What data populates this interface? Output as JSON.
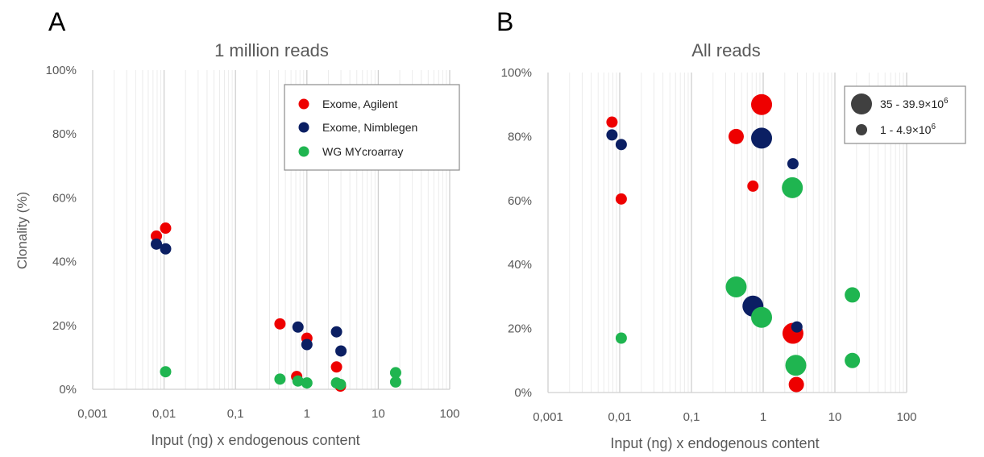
{
  "chart_data": [
    {
      "panel": "A",
      "type": "scatter",
      "title": "1 million reads",
      "xlabel": "Input (ng) x endogenous  content",
      "ylabel": "Clonality (%)",
      "xscale": "log",
      "xlim": [
        0.001,
        100
      ],
      "ylim": [
        0,
        100
      ],
      "x_ticks": [
        "0,001",
        "0,01",
        "0,1",
        "1",
        "10",
        "100"
      ],
      "y_ticks": [
        "0%",
        "20%",
        "40%",
        "60%",
        "80%",
        "100%"
      ],
      "grid": "vertical log gridlines",
      "legend": "top-right",
      "series": [
        {
          "name": "Exome, Agilent",
          "color": "#ee0000",
          "points": [
            {
              "x": 0.0078,
              "y": 48
            },
            {
              "x": 0.0105,
              "y": 50.5
            },
            {
              "x": 0.42,
              "y": 20.5
            },
            {
              "x": 0.72,
              "y": 4
            },
            {
              "x": 1.0,
              "y": 16
            },
            {
              "x": 2.6,
              "y": 7
            },
            {
              "x": 2.95,
              "y": 1
            }
          ]
        },
        {
          "name": "Exome, Nimblegen",
          "color": "#0b1f63",
          "points": [
            {
              "x": 0.0078,
              "y": 45.5
            },
            {
              "x": 0.0105,
              "y": 44
            },
            {
              "x": 0.75,
              "y": 19.5
            },
            {
              "x": 1.0,
              "y": 14
            },
            {
              "x": 2.6,
              "y": 18
            },
            {
              "x": 3.0,
              "y": 12
            }
          ]
        },
        {
          "name": "WG MYcroarray",
          "color": "#1fb550",
          "points": [
            {
              "x": 0.0105,
              "y": 5.5
            },
            {
              "x": 0.42,
              "y": 3.2
            },
            {
              "x": 0.75,
              "y": 2.6
            },
            {
              "x": 1.0,
              "y": 2
            },
            {
              "x": 2.6,
              "y": 2
            },
            {
              "x": 2.95,
              "y": 1.5
            },
            {
              "x": 17.5,
              "y": 5.2
            },
            {
              "x": 17.5,
              "y": 2.3
            }
          ]
        }
      ]
    },
    {
      "panel": "B",
      "type": "scatter",
      "title": "All reads",
      "xlabel": "Input (ng) x endogenous  content",
      "xscale": "log",
      "xlim": [
        0.001,
        100
      ],
      "ylim": [
        0,
        100
      ],
      "x_ticks": [
        "0,001",
        "0,01",
        "0,1",
        "1",
        "10",
        "100"
      ],
      "y_ticks": [
        "0%",
        "20%",
        "40%",
        "60%",
        "80%",
        "100%"
      ],
      "grid": "vertical log gridlines",
      "legend": "top-right",
      "size_legend": [
        {
          "label": "35 - 39.9×10",
          "sup": "6",
          "size": "large"
        },
        {
          "label": "1 - 4.9×10",
          "sup": "6",
          "size": "small"
        }
      ],
      "series": [
        {
          "name": "Exome, Agilent",
          "color": "#ee0000",
          "points": [
            {
              "x": 0.0078,
              "y": 84.5,
              "size": "small"
            },
            {
              "x": 0.0105,
              "y": 60.5,
              "size": "small"
            },
            {
              "x": 0.42,
              "y": 80,
              "size": "medium"
            },
            {
              "x": 0.72,
              "y": 64.5,
              "size": "small"
            },
            {
              "x": 0.95,
              "y": 90,
              "size": "large"
            },
            {
              "x": 0.78,
              "y": 25,
              "size": "small"
            },
            {
              "x": 2.6,
              "y": 18.5,
              "size": "large"
            },
            {
              "x": 2.9,
              "y": 2.5,
              "size": "medium"
            }
          ]
        },
        {
          "name": "Exome, Nimblegen",
          "color": "#0b1f63",
          "points": [
            {
              "x": 0.0078,
              "y": 80.5,
              "size": "small"
            },
            {
              "x": 0.0105,
              "y": 77.5,
              "size": "small"
            },
            {
              "x": 0.95,
              "y": 79.5,
              "size": "large"
            },
            {
              "x": 2.6,
              "y": 71.5,
              "size": "small"
            },
            {
              "x": 0.72,
              "y": 27,
              "size": "large"
            },
            {
              "x": 2.95,
              "y": 20.5,
              "size": "small"
            }
          ]
        },
        {
          "name": "WG MYcroarray",
          "color": "#1fb550",
          "points": [
            {
              "x": 0.0105,
              "y": 17,
              "size": "small"
            },
            {
              "x": 0.42,
              "y": 33,
              "size": "large"
            },
            {
              "x": 0.95,
              "y": 23.5,
              "size": "large"
            },
            {
              "x": 2.55,
              "y": 64,
              "size": "large"
            },
            {
              "x": 2.85,
              "y": 8.5,
              "size": "large"
            },
            {
              "x": 17.5,
              "y": 30.5,
              "size": "medium"
            },
            {
              "x": 17.5,
              "y": 10,
              "size": "medium"
            }
          ]
        }
      ]
    }
  ],
  "panel_labels": [
    "A",
    "B"
  ]
}
